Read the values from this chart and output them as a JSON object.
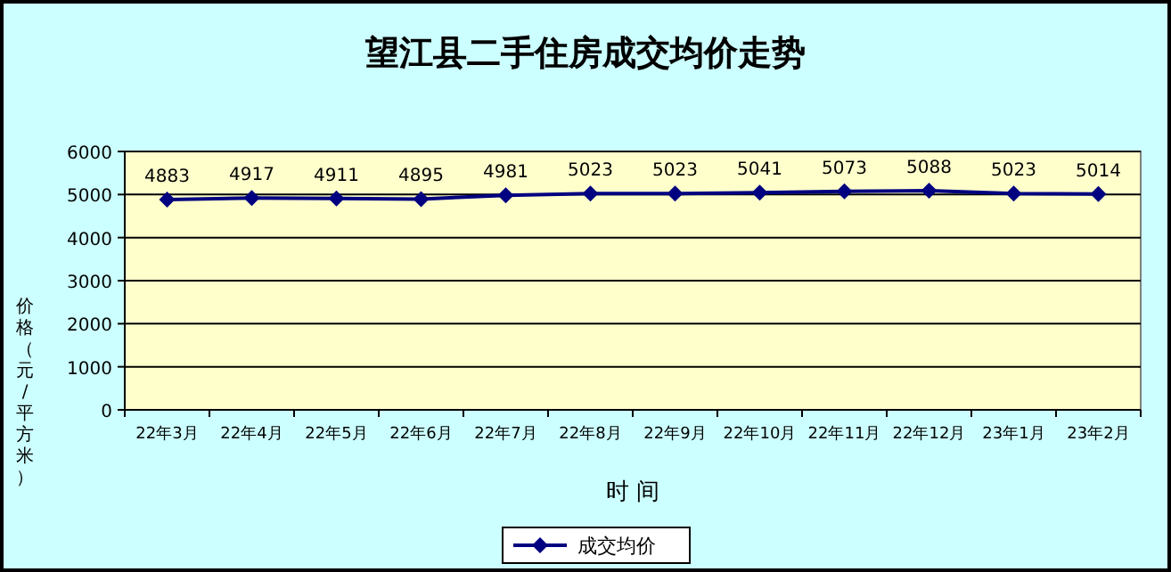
{
  "chart_data": {
    "type": "line",
    "title": "望江县二手住房成交均价走势",
    "xlabel": "时 间",
    "ylabel": "价格（元/平方米）",
    "categories": [
      "22年3月",
      "22年4月",
      "22年5月",
      "22年6月",
      "22年7月",
      "22年8月",
      "22年9月",
      "22年10月",
      "22年11月",
      "22年12月",
      "23年1月",
      "23年2月"
    ],
    "series": [
      {
        "name": "成交均价",
        "color": "#000080",
        "values": [
          4883,
          4917,
          4911,
          4895,
          4981,
          5023,
          5023,
          5041,
          5073,
          5088,
          5023,
          5014
        ]
      }
    ],
    "ylim": [
      0,
      6000
    ],
    "yticks": [
      0,
      1000,
      2000,
      3000,
      4000,
      5000,
      6000
    ],
    "grid": "y",
    "legend": "bottom",
    "marker": "diamond",
    "line_style": "solid",
    "data_labels": true
  }
}
